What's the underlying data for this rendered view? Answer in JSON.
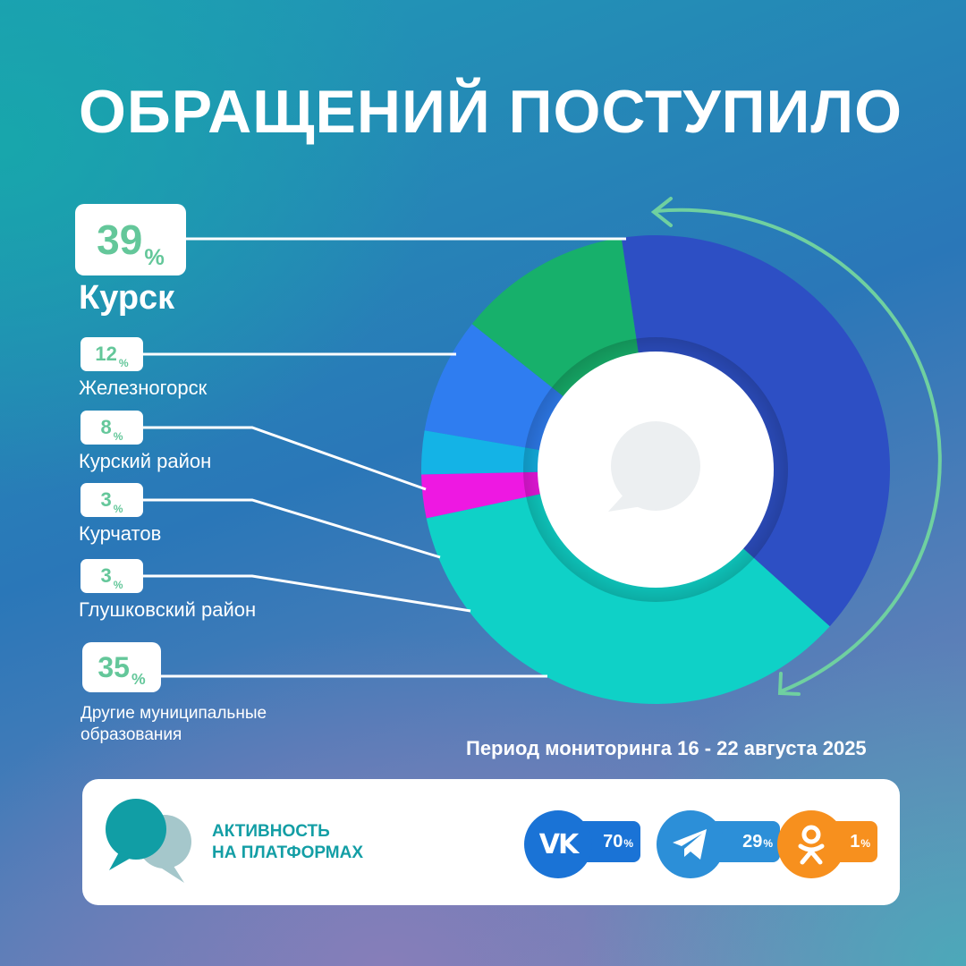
{
  "title": "ОБРАЩЕНИЙ ПОСТУПИЛО",
  "period": "Период мониторинга 16 - 22 августа 2025",
  "colors": {
    "kursk": "#2d4fc4",
    "zheleznogorsk": "#17b06b",
    "kursky_raion": "#2f7df0",
    "kurchatov": "#14b3e6",
    "glushkovsky": "#ee18e2",
    "other": "#0fd1c7",
    "accent_green": "#64c79a"
  },
  "chart_data": {
    "type": "pie",
    "title": "ОБРАЩЕНИЙ ПОСТУПИЛО",
    "slices": [
      {
        "label": "Курск",
        "value": 39,
        "display": "39",
        "unit": "%"
      },
      {
        "label": "Железногорск",
        "value": 12,
        "display": "12",
        "unit": "%"
      },
      {
        "label": "Курский район",
        "value": 8,
        "display": "8",
        "unit": "%"
      },
      {
        "label": "Курчатов",
        "value": 3,
        "display": "3",
        "unit": "%"
      },
      {
        "label": "Глушковский район",
        "value": 3,
        "display": "3",
        "unit": "%"
      },
      {
        "label": "Другие муниципальные образования",
        "value": 35,
        "display": "35",
        "unit": "%"
      }
    ]
  },
  "platforms": {
    "heading_line1": "АКТИВНОСТЬ",
    "heading_line2": "НА ПЛАТФОРМАХ",
    "items": [
      {
        "icon": "vk-icon",
        "value": "70",
        "unit": "%",
        "color": "#1a73d6"
      },
      {
        "icon": "telegram-icon",
        "value": "29",
        "unit": "%",
        "color": "#2c8fd8"
      },
      {
        "icon": "odnoklassniki-icon",
        "value": "1",
        "unit": "%",
        "color": "#f7901e"
      }
    ]
  }
}
